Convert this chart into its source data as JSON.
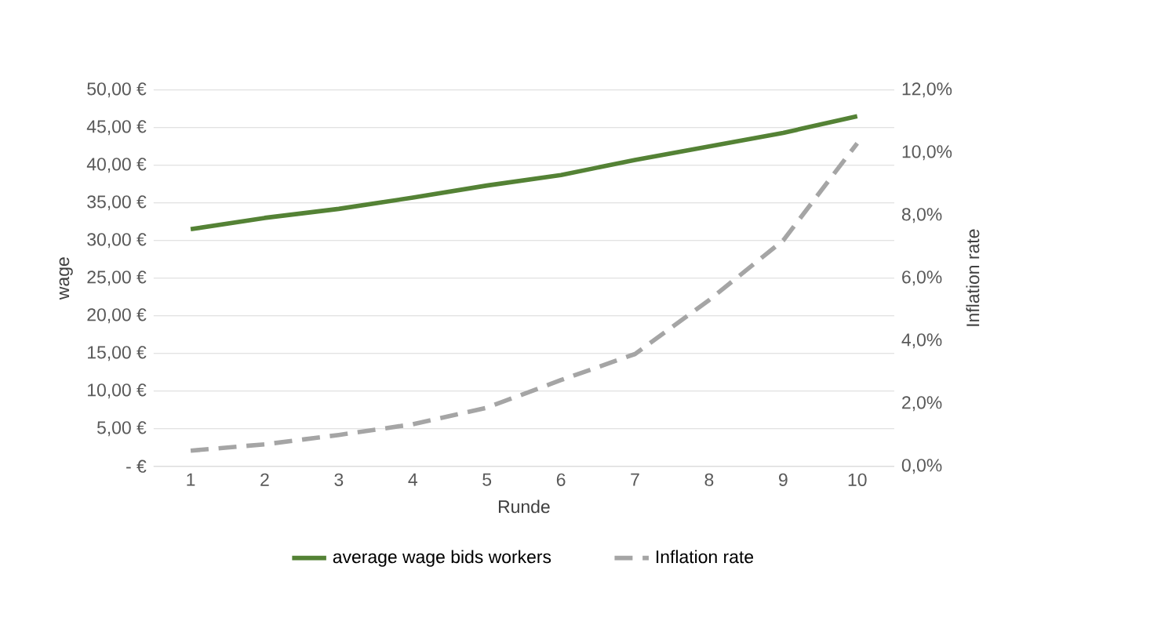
{
  "chart_data": {
    "type": "line",
    "xlabel": "Runde",
    "ylabel": "wage",
    "y2label": "Inflation rate",
    "categories": [
      "1",
      "2",
      "3",
      "4",
      "5",
      "6",
      "7",
      "8",
      "9",
      "10"
    ],
    "series": [
      {
        "name": "average wage bids workers",
        "color": "#548235",
        "line_style": "solid",
        "values": [
          31.5,
          33.0,
          34.2,
          35.7,
          37.3,
          38.7,
          40.7,
          42.5,
          44.3,
          46.5
        ]
      },
      {
        "name": "Inflation rate",
        "color": "#a5a5a5",
        "line_style": "dashed",
        "axis": "y2",
        "values": [
          0.5,
          0.7,
          1.0,
          1.34,
          1.87,
          2.75,
          3.58,
          5.3,
          7.2,
          10.3
        ]
      }
    ],
    "ylim": [
      0,
      50
    ],
    "yticks": [
      {
        "value": 0,
        "label": "-   €"
      },
      {
        "value": 5,
        "label": "5,00 €"
      },
      {
        "value": 10,
        "label": "10,00 €"
      },
      {
        "value": 15,
        "label": "15,00 €"
      },
      {
        "value": 20,
        "label": "20,00 €"
      },
      {
        "value": 25,
        "label": "25,00 €"
      },
      {
        "value": 30,
        "label": "30,00 €"
      },
      {
        "value": 35,
        "label": "35,00 €"
      },
      {
        "value": 40,
        "label": "40,00 €"
      },
      {
        "value": 45,
        "label": "45,00 €"
      },
      {
        "value": 50,
        "label": "50,00 €"
      }
    ],
    "y2lim": [
      0,
      12
    ],
    "y2ticks": [
      {
        "value": 0,
        "label": "0,0%"
      },
      {
        "value": 2,
        "label": "2,0%"
      },
      {
        "value": 4,
        "label": "4,0%"
      },
      {
        "value": 6,
        "label": "6,0%"
      },
      {
        "value": 8,
        "label": "8,0%"
      },
      {
        "value": 10,
        "label": "10,0%"
      },
      {
        "value": 12,
        "label": "12,0%"
      }
    ],
    "grid": "y",
    "legend": "bottom",
    "marker": "none"
  }
}
